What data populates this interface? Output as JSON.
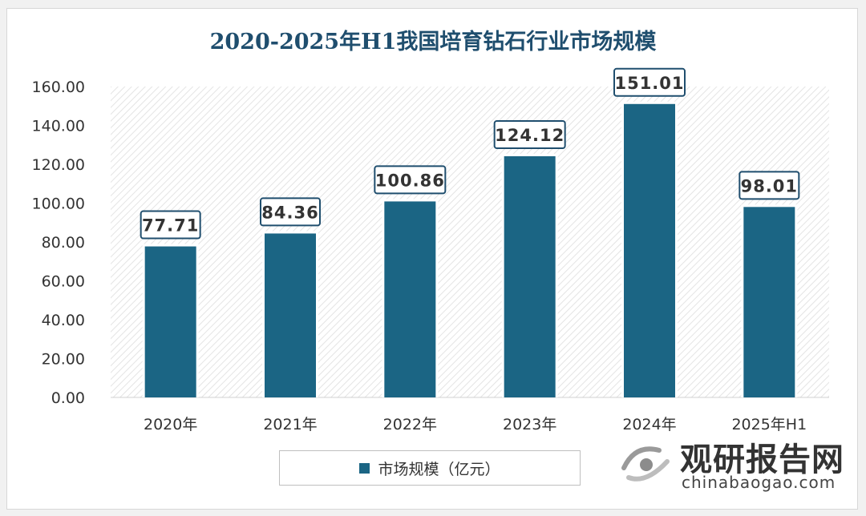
{
  "chart_data": {
    "type": "bar",
    "title": "2020-2025年H1我国培育钻石行业市场规模",
    "categories": [
      "2020年",
      "2021年",
      "2022年",
      "2023年",
      "2024年",
      "2025年H1"
    ],
    "series": [
      {
        "name": "市场规模（亿元）",
        "values": [
          77.71,
          84.36,
          100.86,
          124.12,
          151.01,
          98.01
        ]
      }
    ],
    "data_labels": [
      "77.71",
      "84.36",
      "100.86",
      "124.12",
      "151.01",
      "98.01"
    ],
    "yticks": [
      "0.00",
      "20.00",
      "40.00",
      "60.00",
      "80.00",
      "100.00",
      "120.00",
      "140.00",
      "160.00"
    ],
    "ylim": [
      0,
      160
    ],
    "grid": false,
    "legend_position": "bottom",
    "bar_color": "#1b6584"
  },
  "watermark": {
    "cn": "观研报告网",
    "en": "chinabaogao.com"
  }
}
